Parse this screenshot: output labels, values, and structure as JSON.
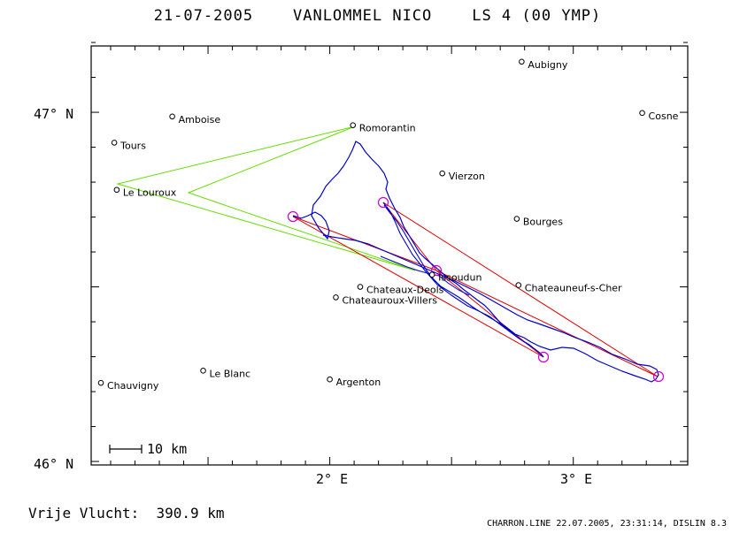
{
  "header": {
    "title": "21-07-2005    VANLOMMEL NICO    LS 4 (00 YMP)"
  },
  "footer": {
    "distance_text": "Vrije Vlucht:  390.9 km",
    "credit_text": "CHARRON.LINE 22.07.2005, 23:31:14, DISLIN 8.3"
  },
  "map": {
    "lon_range": [
      1.02,
      3.47
    ],
    "lat_range": [
      45.99,
      47.19
    ],
    "axis_labels": {
      "lat": [
        "46° N",
        "47° N"
      ],
      "lon": [
        "2° E",
        "3° E"
      ]
    },
    "scale_bar_label": "10 km",
    "colors": {
      "track": "#0000cc",
      "task": "#dd0000",
      "optimized": "#66dd00",
      "turnpoint": "#cc00cc"
    },
    "towns": [
      {
        "name": "Aubigny",
        "lon": 2.788,
        "lat": 47.145
      },
      {
        "name": "Amboise",
        "lon": 1.353,
        "lat": 46.988
      },
      {
        "name": "Cosne",
        "lon": 3.283,
        "lat": 46.998
      },
      {
        "name": "Tours",
        "lon": 1.115,
        "lat": 46.913
      },
      {
        "name": "Romorantin",
        "lon": 2.095,
        "lat": 46.963
      },
      {
        "name": "Vierzon",
        "lon": 2.462,
        "lat": 46.825
      },
      {
        "name": "Le Louroux",
        "lon": 1.125,
        "lat": 46.778
      },
      {
        "name": "Bourges",
        "lon": 2.768,
        "lat": 46.695
      },
      {
        "name": "Issoudun",
        "lon": 2.42,
        "lat": 46.535
      },
      {
        "name": "Chateaux-Deols",
        "lon": 2.125,
        "lat": 46.5
      },
      {
        "name": "Chateauneuf-s-Cher",
        "lon": 2.775,
        "lat": 46.505
      },
      {
        "name": "Chateauroux-Villers",
        "lon": 2.025,
        "lat": 46.47
      },
      {
        "name": "Le Blanc",
        "lon": 1.48,
        "lat": 46.26
      },
      {
        "name": "Chauvigny",
        "lon": 1.06,
        "lat": 46.225
      },
      {
        "name": "Argenton",
        "lon": 2.0,
        "lat": 46.235
      }
    ]
  }
}
